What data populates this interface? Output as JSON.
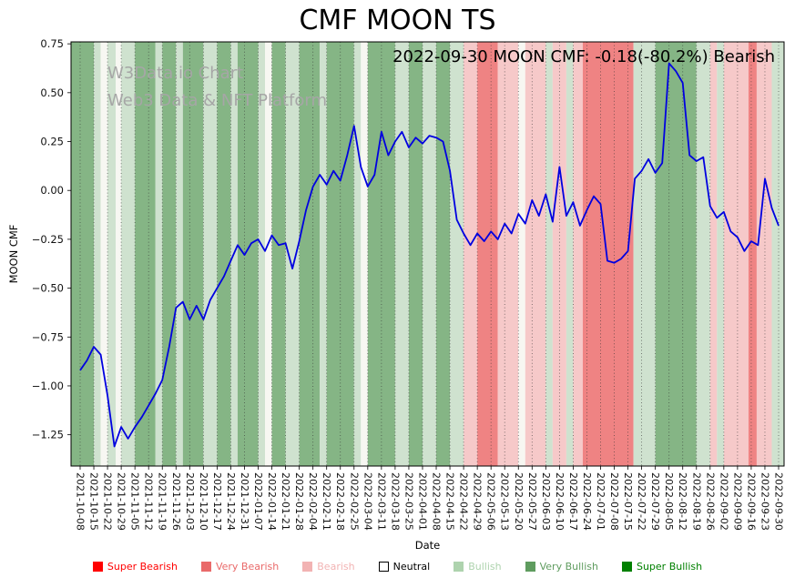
{
  "title": "CMF MOON TS",
  "annotation": "2022-09-30 MOON CMF: -0.18(-80.2%) Bearish",
  "watermark": {
    "line1": "W3Data.io Chart",
    "line2": "Web3 Data & NFT Platform"
  },
  "chart_data": {
    "type": "line",
    "title": "CMF MOON TS",
    "xlabel": "Date",
    "ylabel": "MOON CMF",
    "ylim": [
      -1.41,
      0.76
    ],
    "grid": "vertical dotted gridline at every weekly tick",
    "legend_position": "bottom",
    "ytick_values": [
      0.75,
      0.5,
      0.25,
      0.0,
      -0.25,
      -0.5,
      -0.75,
      -1.0,
      -1.25
    ],
    "ytick_labels": [
      "0.75",
      "0.50",
      "0.25",
      "0.00",
      "−0.25",
      "−0.50",
      "−0.75",
      "−1.00",
      "−1.25"
    ],
    "x_tick_labels": [
      "2021-10-08",
      "2021-10-15",
      "2021-10-22",
      "2021-10-29",
      "2021-11-05",
      "2021-11-12",
      "2021-11-19",
      "2021-11-26",
      "2021-12-03",
      "2021-12-10",
      "2021-12-17",
      "2021-12-24",
      "2021-12-31",
      "2022-01-07",
      "2022-01-14",
      "2022-01-21",
      "2022-01-28",
      "2022-02-04",
      "2022-02-11",
      "2022-02-18",
      "2022-02-25",
      "2022-03-04",
      "2022-03-11",
      "2022-03-18",
      "2022-03-25",
      "2022-04-01",
      "2022-04-08",
      "2022-04-15",
      "2022-04-22",
      "2022-04-29",
      "2022-05-06",
      "2022-05-13",
      "2022-05-20",
      "2022-05-27",
      "2022-06-03",
      "2022-06-10",
      "2022-06-17",
      "2022-06-24",
      "2022-07-01",
      "2022-07-08",
      "2022-07-15",
      "2022-07-22",
      "2022-07-29",
      "2022-08-05",
      "2022-08-12",
      "2022-08-19",
      "2022-08-26",
      "2022-09-02",
      "2022-09-09",
      "2022-09-16",
      "2022-09-23",
      "2022-09-30"
    ],
    "latest": {
      "date": "2022-09-30",
      "value": -0.18,
      "change_pct": -80.2,
      "sentiment": "Bearish"
    },
    "series": [
      {
        "name": "MOON CMF",
        "color": "#0000e0",
        "x_step_weeks": 0.5,
        "values": [
          -0.92,
          -0.87,
          -0.8,
          -0.84,
          -1.05,
          -1.31,
          -1.21,
          -1.27,
          -1.21,
          -1.16,
          -1.1,
          -1.04,
          -0.97,
          -0.8,
          -0.6,
          -0.57,
          -0.66,
          -0.59,
          -0.66,
          -0.56,
          -0.5,
          -0.44,
          -0.36,
          -0.28,
          -0.33,
          -0.27,
          -0.25,
          -0.31,
          -0.23,
          -0.28,
          -0.27,
          -0.4,
          -0.26,
          -0.1,
          0.02,
          0.08,
          0.03,
          0.1,
          0.05,
          0.18,
          0.33,
          0.12,
          0.02,
          0.08,
          0.3,
          0.18,
          0.25,
          0.3,
          0.22,
          0.27,
          0.24,
          0.28,
          0.27,
          0.25,
          0.1,
          -0.15,
          -0.22,
          -0.28,
          -0.22,
          -0.26,
          -0.21,
          -0.25,
          -0.17,
          -0.22,
          -0.12,
          -0.17,
          -0.05,
          -0.13,
          -0.02,
          -0.16,
          0.12,
          -0.13,
          -0.06,
          -0.18,
          -0.1,
          -0.03,
          -0.07,
          -0.36,
          -0.37,
          -0.35,
          -0.31,
          0.06,
          0.1,
          0.16,
          0.09,
          0.14,
          0.65,
          0.61,
          0.55,
          0.18,
          0.15,
          0.17,
          -0.08,
          -0.14,
          -0.11,
          -0.21,
          -0.24,
          -0.31,
          -0.26,
          -0.28,
          0.06,
          -0.09,
          -0.18
        ]
      }
    ],
    "band_colors": {
      "super_bearish": "#ff4d4d",
      "very_bearish": "#ef8383",
      "bearish": "#f6c9c9",
      "neutral": "#f7f7f2",
      "bullish": "#cfe2cf",
      "very_bullish": "#85b585",
      "super_bullish": "#2e8b2e"
    },
    "bands": [
      {
        "start": -0.7,
        "end": 1,
        "level": "very_bullish"
      },
      {
        "start": 1,
        "end": 1.5,
        "level": "bullish"
      },
      {
        "start": 1.5,
        "end": 2,
        "level": "neutral"
      },
      {
        "start": 2,
        "end": 2.6,
        "level": "bullish"
      },
      {
        "start": 2.6,
        "end": 3,
        "level": "neutral"
      },
      {
        "start": 3,
        "end": 4,
        "level": "bullish"
      },
      {
        "start": 4,
        "end": 5.5,
        "level": "very_bullish"
      },
      {
        "start": 5.5,
        "end": 6,
        "level": "bullish"
      },
      {
        "start": 6,
        "end": 7,
        "level": "very_bullish"
      },
      {
        "start": 7,
        "end": 7.5,
        "level": "bullish"
      },
      {
        "start": 7.5,
        "end": 9,
        "level": "very_bullish"
      },
      {
        "start": 9,
        "end": 10,
        "level": "bullish"
      },
      {
        "start": 10,
        "end": 11,
        "level": "very_bullish"
      },
      {
        "start": 11,
        "end": 11.5,
        "level": "bullish"
      },
      {
        "start": 11.5,
        "end": 13,
        "level": "very_bullish"
      },
      {
        "start": 13,
        "end": 13.5,
        "level": "bullish"
      },
      {
        "start": 13.5,
        "end": 14,
        "level": "neutral"
      },
      {
        "start": 14,
        "end": 15,
        "level": "very_bullish"
      },
      {
        "start": 15,
        "end": 16,
        "level": "bullish"
      },
      {
        "start": 16,
        "end": 17.5,
        "level": "very_bullish"
      },
      {
        "start": 17.5,
        "end": 18,
        "level": "bullish"
      },
      {
        "start": 18,
        "end": 20,
        "level": "very_bullish"
      },
      {
        "start": 20,
        "end": 20.5,
        "level": "bullish"
      },
      {
        "start": 20.5,
        "end": 21,
        "level": "neutral"
      },
      {
        "start": 21,
        "end": 23,
        "level": "very_bullish"
      },
      {
        "start": 23,
        "end": 24,
        "level": "bullish"
      },
      {
        "start": 24,
        "end": 25,
        "level": "very_bullish"
      },
      {
        "start": 25,
        "end": 26,
        "level": "bullish"
      },
      {
        "start": 26,
        "end": 27,
        "level": "very_bullish"
      },
      {
        "start": 27,
        "end": 28,
        "level": "bullish"
      },
      {
        "start": 28,
        "end": 29,
        "level": "bearish"
      },
      {
        "start": 29,
        "end": 30.5,
        "level": "very_bearish"
      },
      {
        "start": 30.5,
        "end": 32,
        "level": "bearish"
      },
      {
        "start": 32,
        "end": 32.5,
        "level": "neutral"
      },
      {
        "start": 32.5,
        "end": 34,
        "level": "bearish"
      },
      {
        "start": 34,
        "end": 34.5,
        "level": "bullish"
      },
      {
        "start": 34.5,
        "end": 35.5,
        "level": "bearish"
      },
      {
        "start": 35.5,
        "end": 36,
        "level": "bullish"
      },
      {
        "start": 36,
        "end": 36.7,
        "level": "bearish"
      },
      {
        "start": 36.7,
        "end": 40.4,
        "level": "very_bearish"
      },
      {
        "start": 40.4,
        "end": 42,
        "level": "bullish"
      },
      {
        "start": 42,
        "end": 45,
        "level": "very_bullish"
      },
      {
        "start": 45,
        "end": 46,
        "level": "bullish"
      },
      {
        "start": 46,
        "end": 46.5,
        "level": "bearish"
      },
      {
        "start": 46.5,
        "end": 47,
        "level": "bullish"
      },
      {
        "start": 47,
        "end": 48.8,
        "level": "bearish"
      },
      {
        "start": 48.8,
        "end": 49.4,
        "level": "very_bearish"
      },
      {
        "start": 49.4,
        "end": 50.5,
        "level": "bearish"
      },
      {
        "start": 50.5,
        "end": 51.4,
        "level": "bullish"
      }
    ],
    "legend": [
      {
        "label": "Super Bearish",
        "color": "#ff0000",
        "outlined": false
      },
      {
        "label": "Very Bearish",
        "color": "#e96a6a",
        "outlined": false
      },
      {
        "label": "Bearish",
        "color": "#f2b3b3",
        "outlined": false
      },
      {
        "label": "Neutral",
        "color": "#ffffff",
        "text_color": "#000000",
        "outlined": true
      },
      {
        "label": "Bullish",
        "color": "#aed3ae",
        "outlined": false
      },
      {
        "label": "Very Bullish",
        "color": "#5f9c5f",
        "outlined": false
      },
      {
        "label": "Super Bullish",
        "color": "#008000",
        "outlined": false
      }
    ]
  }
}
